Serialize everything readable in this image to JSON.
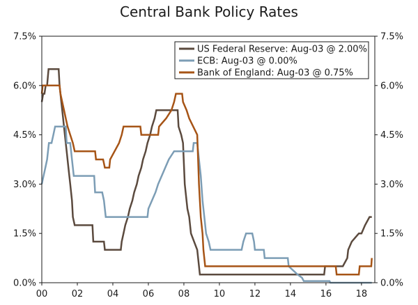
{
  "chart_data": {
    "type": "line",
    "title": "Central Bank Policy Rates",
    "xlabel": "",
    "ylabel": "",
    "xlim": [
      0,
      18.75
    ],
    "ylim": [
      0,
      7.5
    ],
    "x_ticks": [
      {
        "value": 0,
        "label": "00"
      },
      {
        "value": 2,
        "label": "02"
      },
      {
        "value": 4,
        "label": "04"
      },
      {
        "value": 6,
        "label": "06"
      },
      {
        "value": 8,
        "label": "08"
      },
      {
        "value": 10,
        "label": "10"
      },
      {
        "value": 12,
        "label": "12"
      },
      {
        "value": 14,
        "label": "14"
      },
      {
        "value": 16,
        "label": "16"
      },
      {
        "value": 18,
        "label": "18"
      }
    ],
    "y_ticks": [
      {
        "value": 0,
        "label": "0.0%"
      },
      {
        "value": 1.5,
        "label": "1.5%"
      },
      {
        "value": 3,
        "label": "3.0%"
      },
      {
        "value": 4.5,
        "label": "4.5%"
      },
      {
        "value": 6,
        "label": "6.0%"
      },
      {
        "value": 7.5,
        "label": "7.5%"
      }
    ],
    "grid": false,
    "legend_position": "top-right",
    "series": [
      {
        "name": "US Federal Reserve: Aug-03 @ 2.00%",
        "color": "#5b4a3e",
        "points": [
          [
            0.0,
            5.5
          ],
          [
            0.08,
            5.75
          ],
          [
            0.15,
            5.75
          ],
          [
            0.22,
            6.0
          ],
          [
            0.3,
            6.0
          ],
          [
            0.38,
            6.5
          ],
          [
            0.95,
            6.5
          ],
          [
            1.0,
            6.0
          ],
          [
            1.1,
            5.5
          ],
          [
            1.2,
            5.0
          ],
          [
            1.3,
            4.5
          ],
          [
            1.4,
            4.0
          ],
          [
            1.5,
            3.5
          ],
          [
            1.6,
            3.0
          ],
          [
            1.7,
            2.5
          ],
          [
            1.75,
            2.0
          ],
          [
            1.85,
            1.75
          ],
          [
            2.85,
            1.75
          ],
          [
            2.9,
            1.25
          ],
          [
            3.5,
            1.25
          ],
          [
            3.55,
            1.0
          ],
          [
            4.45,
            1.0
          ],
          [
            4.5,
            1.25
          ],
          [
            4.6,
            1.5
          ],
          [
            4.7,
            1.75
          ],
          [
            4.85,
            2.0
          ],
          [
            4.95,
            2.25
          ],
          [
            5.1,
            2.5
          ],
          [
            5.2,
            2.75
          ],
          [
            5.35,
            3.0
          ],
          [
            5.45,
            3.25
          ],
          [
            5.6,
            3.5
          ],
          [
            5.7,
            3.75
          ],
          [
            5.85,
            4.0
          ],
          [
            5.95,
            4.25
          ],
          [
            6.1,
            4.5
          ],
          [
            6.2,
            4.75
          ],
          [
            6.35,
            5.0
          ],
          [
            6.45,
            5.25
          ],
          [
            7.65,
            5.25
          ],
          [
            7.7,
            4.75
          ],
          [
            7.85,
            4.5
          ],
          [
            7.95,
            4.25
          ],
          [
            8.05,
            3.0
          ],
          [
            8.2,
            2.25
          ],
          [
            8.3,
            2.0
          ],
          [
            8.4,
            1.5
          ],
          [
            8.75,
            1.0
          ],
          [
            8.9,
            0.25
          ],
          [
            15.9,
            0.25
          ],
          [
            15.95,
            0.5
          ],
          [
            16.95,
            0.5
          ],
          [
            17.2,
            0.75
          ],
          [
            17.25,
            1.0
          ],
          [
            17.45,
            1.25
          ],
          [
            17.85,
            1.5
          ],
          [
            18.0,
            1.5
          ],
          [
            18.2,
            1.75
          ],
          [
            18.45,
            2.0
          ],
          [
            18.58,
            2.0
          ]
        ]
      },
      {
        "name": "ECB: Aug-03 @ 0.00%",
        "color": "#7c9db5",
        "points": [
          [
            0.0,
            3.0
          ],
          [
            0.1,
            3.25
          ],
          [
            0.2,
            3.5
          ],
          [
            0.3,
            3.75
          ],
          [
            0.4,
            4.25
          ],
          [
            0.55,
            4.25
          ],
          [
            0.65,
            4.5
          ],
          [
            0.75,
            4.75
          ],
          [
            1.35,
            4.75
          ],
          [
            1.4,
            4.25
          ],
          [
            1.6,
            4.25
          ],
          [
            1.7,
            3.75
          ],
          [
            1.8,
            3.25
          ],
          [
            2.95,
            3.25
          ],
          [
            3.0,
            2.75
          ],
          [
            3.4,
            2.75
          ],
          [
            3.5,
            2.5
          ],
          [
            3.6,
            2.0
          ],
          [
            5.95,
            2.0
          ],
          [
            6.0,
            2.25
          ],
          [
            6.2,
            2.5
          ],
          [
            6.4,
            2.75
          ],
          [
            6.55,
            3.0
          ],
          [
            6.75,
            3.25
          ],
          [
            6.95,
            3.5
          ],
          [
            7.15,
            3.75
          ],
          [
            7.45,
            4.0
          ],
          [
            8.5,
            4.0
          ],
          [
            8.55,
            4.25
          ],
          [
            8.75,
            4.25
          ],
          [
            8.85,
            3.75
          ],
          [
            8.95,
            3.25
          ],
          [
            9.05,
            2.5
          ],
          [
            9.15,
            2.0
          ],
          [
            9.25,
            1.5
          ],
          [
            9.4,
            1.25
          ],
          [
            9.5,
            1.0
          ],
          [
            11.25,
            1.0
          ],
          [
            11.35,
            1.25
          ],
          [
            11.5,
            1.5
          ],
          [
            11.85,
            1.5
          ],
          [
            11.95,
            1.25
          ],
          [
            12.0,
            1.0
          ],
          [
            12.5,
            1.0
          ],
          [
            12.55,
            0.75
          ],
          [
            13.85,
            0.75
          ],
          [
            13.9,
            0.5
          ],
          [
            14.4,
            0.25
          ],
          [
            14.65,
            0.15
          ],
          [
            14.75,
            0.05
          ],
          [
            16.2,
            0.05
          ],
          [
            16.25,
            0.0
          ],
          [
            18.58,
            0.0
          ]
        ]
      },
      {
        "name": "Bank of England: Aug-03 @ 0.75%",
        "color": "#a65416",
        "points": [
          [
            0.0,
            5.75
          ],
          [
            0.05,
            6.0
          ],
          [
            1.0,
            6.0
          ],
          [
            1.05,
            5.75
          ],
          [
            1.15,
            5.5
          ],
          [
            1.25,
            5.25
          ],
          [
            1.35,
            5.0
          ],
          [
            1.45,
            4.75
          ],
          [
            1.6,
            4.5
          ],
          [
            1.75,
            4.25
          ],
          [
            1.85,
            4.0
          ],
          [
            3.0,
            4.0
          ],
          [
            3.05,
            3.75
          ],
          [
            3.45,
            3.75
          ],
          [
            3.55,
            3.5
          ],
          [
            3.8,
            3.5
          ],
          [
            3.85,
            3.75
          ],
          [
            4.1,
            4.0
          ],
          [
            4.35,
            4.25
          ],
          [
            4.5,
            4.5
          ],
          [
            4.6,
            4.75
          ],
          [
            5.55,
            4.75
          ],
          [
            5.6,
            4.5
          ],
          [
            6.55,
            4.5
          ],
          [
            6.6,
            4.75
          ],
          [
            7.0,
            5.0
          ],
          [
            7.3,
            5.25
          ],
          [
            7.45,
            5.5
          ],
          [
            7.55,
            5.75
          ],
          [
            7.9,
            5.75
          ],
          [
            7.95,
            5.5
          ],
          [
            8.15,
            5.25
          ],
          [
            8.3,
            5.0
          ],
          [
            8.75,
            4.5
          ],
          [
            8.85,
            3.0
          ],
          [
            8.95,
            2.0
          ],
          [
            9.05,
            1.5
          ],
          [
            9.1,
            1.0
          ],
          [
            9.2,
            0.5
          ],
          [
            16.55,
            0.5
          ],
          [
            16.6,
            0.25
          ],
          [
            17.85,
            0.25
          ],
          [
            17.9,
            0.5
          ],
          [
            18.55,
            0.5
          ],
          [
            18.58,
            0.75
          ]
        ]
      }
    ]
  }
}
